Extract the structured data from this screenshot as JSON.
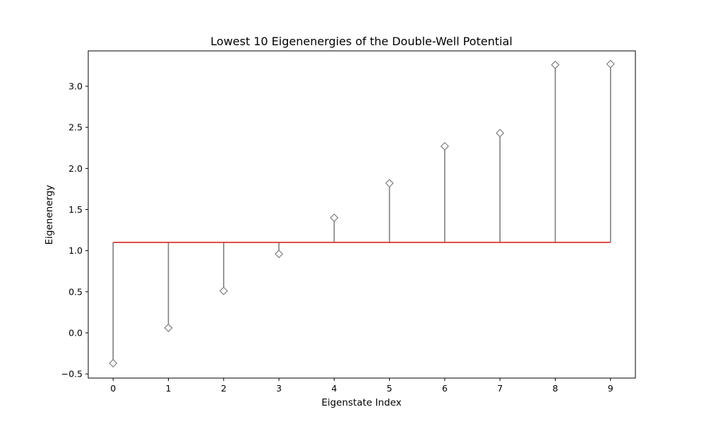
{
  "chart_data": {
    "type": "stem",
    "title": "Lowest 10 Eigenenergies of the Double-Well Potential",
    "xlabel": "Eigenstate Index",
    "ylabel": "Eigenenergy",
    "x": [
      0,
      1,
      2,
      3,
      4,
      5,
      6,
      7,
      8,
      9
    ],
    "values": [
      -0.37,
      0.06,
      0.51,
      0.96,
      1.4,
      1.82,
      2.27,
      2.43,
      3.26,
      3.27
    ],
    "baseline": 1.1,
    "xlim": [
      -0.45,
      9.45
    ],
    "ylim": [
      -0.55,
      3.43
    ],
    "xticks": [
      0,
      1,
      2,
      3,
      4,
      5,
      6,
      7,
      8,
      9
    ],
    "xtick_labels": [
      "0",
      "1",
      "2",
      "3",
      "4",
      "5",
      "6",
      "7",
      "8",
      "9"
    ],
    "yticks": [
      -0.5,
      0.0,
      0.5,
      1.0,
      1.5,
      2.0,
      2.5,
      3.0
    ],
    "ytick_labels": [
      "−0.5",
      "0.0",
      "0.5",
      "1.0",
      "1.5",
      "2.0",
      "2.5",
      "3.0"
    ],
    "grid": false,
    "marker": "diamond-open",
    "colors": {
      "stem": "#808080",
      "marker": "#808080",
      "baseline": "#d62728"
    }
  }
}
